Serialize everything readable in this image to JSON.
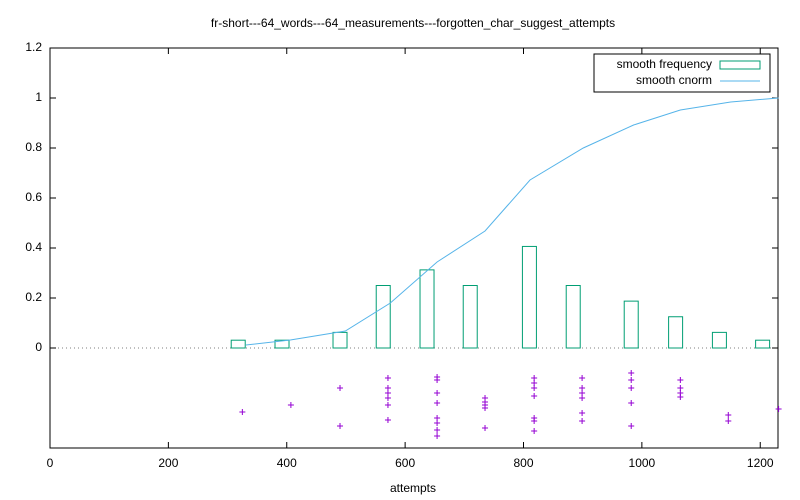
{
  "chart_data": {
    "type": "combo",
    "title": "fr-short---64_words---64_measurements---forgotten_char_suggest_attempts",
    "xlabel": "attempts",
    "xlim": [
      0,
      1230
    ],
    "ylim": [
      -0.4,
      1.2
    ],
    "xticks": [
      0,
      200,
      400,
      600,
      800,
      1000,
      1200
    ],
    "yticks": [
      0,
      0.2,
      0.4,
      0.6,
      0.8,
      1,
      1.2
    ],
    "legend": "top-right",
    "series": [
      {
        "name": "smooth frequency",
        "type": "bar",
        "color": "#009e73",
        "x": [
          318,
          392,
          490,
          563,
          637,
          710,
          810,
          884,
          982,
          1057,
          1131,
          1204
        ],
        "values": [
          0.03125,
          0.03125,
          0.0625,
          0.25,
          0.3125,
          0.25,
          0.40625,
          0.25,
          0.1875,
          0.125,
          0.0625,
          0.03125
        ]
      },
      {
        "name": "smooth cnorm",
        "type": "line",
        "color": "#56b4e9",
        "x": [
          331,
          406,
          499,
          575,
          654,
          735,
          811,
          901,
          986,
          1065,
          1150,
          1231
        ],
        "values": [
          0.012,
          0.032,
          0.068,
          0.18,
          0.344,
          0.468,
          0.672,
          0.8,
          0.892,
          0.952,
          0.984,
          1.0
        ]
      },
      {
        "type": "scatter",
        "color": "#9400d3",
        "x": [
          325,
          407,
          490,
          490,
          571,
          571,
          571,
          571,
          571,
          571,
          654,
          654,
          654,
          654,
          654,
          654,
          654,
          654,
          735,
          735,
          735,
          735,
          735,
          818,
          818,
          818,
          818,
          818,
          818,
          818,
          899,
          899,
          899,
          899,
          899,
          899,
          982,
          982,
          982,
          982,
          982,
          1065,
          1065,
          1065,
          1065,
          1146,
          1146,
          1231
        ],
        "values": [
          -0.256,
          -0.228,
          -0.16,
          -0.312,
          -0.12,
          -0.16,
          -0.18,
          -0.2,
          -0.228,
          -0.288,
          -0.116,
          -0.128,
          -0.18,
          -0.22,
          -0.28,
          -0.3,
          -0.328,
          -0.352,
          -0.2,
          -0.216,
          -0.228,
          -0.24,
          -0.32,
          -0.12,
          -0.14,
          -0.16,
          -0.192,
          -0.28,
          -0.292,
          -0.332,
          -0.12,
          -0.16,
          -0.18,
          -0.2,
          -0.26,
          -0.292,
          -0.1,
          -0.128,
          -0.16,
          -0.22,
          -0.312,
          -0.128,
          -0.16,
          -0.18,
          -0.196,
          -0.268,
          -0.292,
          -0.244
        ]
      }
    ]
  }
}
